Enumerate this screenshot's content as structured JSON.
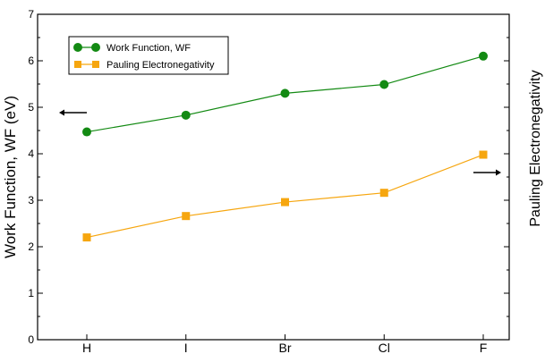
{
  "chart_data": {
    "type": "line",
    "categories": [
      "H",
      "I",
      "Br",
      "Cl",
      "F"
    ],
    "series": [
      {
        "name": "Work Function, WF",
        "values": [
          4.47,
          4.83,
          5.3,
          5.49,
          6.1
        ],
        "color": "#138a13",
        "marker": "circle"
      },
      {
        "name": "Pauling Electronegativity",
        "values": [
          2.2,
          2.66,
          2.96,
          3.16,
          3.98
        ],
        "color": "#f6a60f",
        "marker": "square"
      }
    ],
    "ylabel": "Work Function, WF (eV)",
    "y2label": "Pauling Electronegativity",
    "ylim": [
      0,
      7
    ],
    "yticks": [
      "0",
      "1",
      "2",
      "3",
      "4",
      "5",
      "6",
      "7"
    ],
    "grid": false,
    "legend_position": "top-left",
    "arrows": [
      {
        "name": "left-axis-arrow",
        "direction": "left"
      },
      {
        "name": "right-axis-arrow",
        "direction": "right"
      }
    ]
  }
}
